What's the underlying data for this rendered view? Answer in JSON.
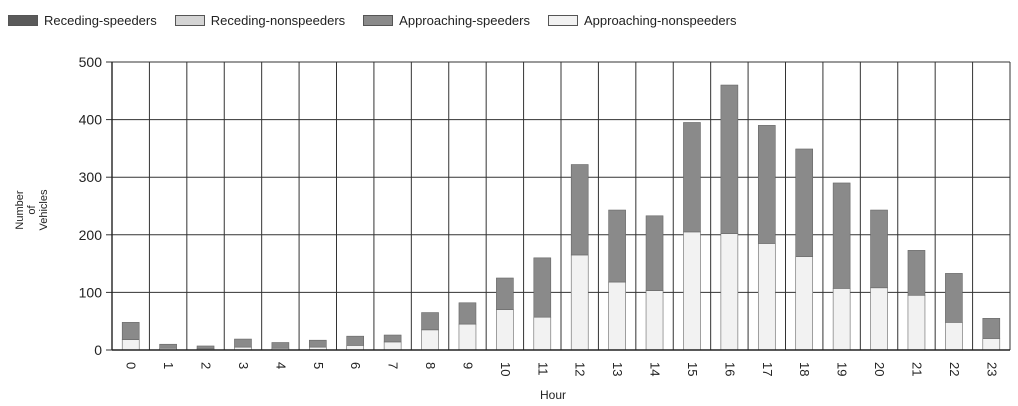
{
  "chart_data": {
    "type": "bar",
    "stacked": true,
    "categories": [
      "0",
      "1",
      "2",
      "3",
      "4",
      "5",
      "6",
      "7",
      "8",
      "9",
      "10",
      "11",
      "12",
      "13",
      "14",
      "15",
      "16",
      "17",
      "18",
      "19",
      "20",
      "21",
      "22",
      "23"
    ],
    "series": [
      {
        "name": "Receding-speeders",
        "color": "#5a5a5a",
        "values": [
          0,
          0,
          0,
          0,
          0,
          0,
          0,
          0,
          0,
          0,
          0,
          0,
          0,
          0,
          0,
          0,
          0,
          0,
          0,
          0,
          0,
          0,
          0,
          0
        ]
      },
      {
        "name": "Receding-nonspeeders",
        "color": "#d4d4d4",
        "values": [
          0,
          0,
          0,
          0,
          0,
          0,
          0,
          0,
          0,
          0,
          0,
          0,
          0,
          0,
          0,
          0,
          0,
          0,
          0,
          0,
          0,
          0,
          0,
          0
        ]
      },
      {
        "name": "Approaching-speeders",
        "color": "#8a8a8a",
        "values": [
          30,
          7,
          5,
          14,
          10,
          12,
          16,
          12,
          30,
          37,
          55,
          103,
          157,
          125,
          130,
          190,
          258,
          205,
          187,
          183,
          135,
          78,
          85,
          35
        ]
      },
      {
        "name": "Approaching-nonspeeders",
        "color": "#f2f2f2",
        "values": [
          18,
          3,
          2,
          5,
          3,
          5,
          8,
          14,
          35,
          45,
          70,
          57,
          165,
          118,
          103,
          205,
          202,
          185,
          162,
          107,
          108,
          95,
          48,
          20
        ]
      }
    ],
    "title": "",
    "xlabel": "Hour",
    "ylabel": "Number of Vehicles",
    "ylabel_lines": [
      "Number of",
      "Vehicles"
    ],
    "ylim": [
      0,
      500
    ],
    "yticks": [
      0,
      100,
      200,
      300,
      400,
      500
    ],
    "grid": true,
    "legend_position": "top-left"
  }
}
